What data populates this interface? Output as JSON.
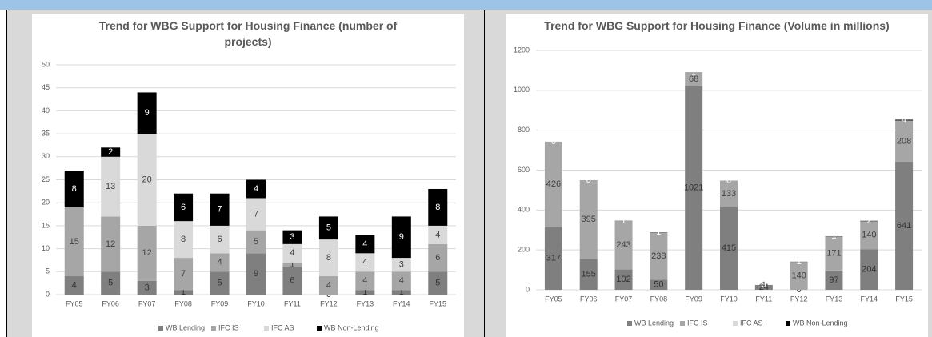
{
  "chart_data": [
    {
      "type": "stacked_bar",
      "title": "Trend for WBG Support for Housing Finance (number of projects)",
      "categories": [
        "FY05",
        "FY06",
        "FY07",
        "FY08",
        "FY09",
        "FY10",
        "FY11",
        "FY12",
        "FY13",
        "FY14",
        "FY15"
      ],
      "series": [
        {
          "name": "WB Lending",
          "color": "#7f7f7f",
          "values": [
            4,
            5,
            3,
            1,
            5,
            9,
            6,
            0,
            1,
            1,
            5
          ]
        },
        {
          "name": "IFC IS",
          "color": "#a6a6a6",
          "values": [
            15,
            12,
            12,
            7,
            4,
            5,
            1,
            4,
            4,
            4,
            6
          ]
        },
        {
          "name": "IFC AS",
          "color": "#d9d9d9",
          "values": [
            null,
            13,
            20,
            8,
            6,
            7,
            4,
            8,
            4,
            3,
            4
          ]
        },
        {
          "name": "WB Non-Lending",
          "color": "#000000",
          "values": [
            8,
            2,
            9,
            6,
            7,
            4,
            3,
            5,
            4,
            9,
            8
          ]
        }
      ],
      "ylim": [
        0,
        50
      ],
      "yticks": [
        0,
        5,
        10,
        15,
        20,
        25,
        30,
        35,
        40,
        45,
        50
      ],
      "grid": true,
      "legend": "bottom"
    },
    {
      "type": "stacked_bar",
      "title": "Trend for WBG Support for Housing Finance (Volume in millions)",
      "categories": [
        "FY05",
        "FY06",
        "FY07",
        "FY08",
        "FY09",
        "FY10",
        "FY11",
        "FY12",
        "FY13",
        "FY14",
        "FY15"
      ],
      "series": [
        {
          "name": "WB Lending",
          "color": "#7f7f7f",
          "values": [
            317,
            155,
            102,
            50,
            1021,
            415,
            24,
            0,
            97,
            204,
            641
          ]
        },
        {
          "name": "IFC IS",
          "color": "#a6a6a6",
          "values": [
            426,
            395,
            243,
            238,
            68,
            133,
            null,
            140,
            171,
            140,
            208
          ]
        },
        {
          "name": "IFC AS",
          "color": "#d9d9d9",
          "values": [
            null,
            null,
            null,
            null,
            null,
            null,
            1,
            null,
            null,
            null,
            null
          ]
        },
        {
          "name": "WB Non-Lending",
          "color": "#000000",
          "values": [
            0,
            0,
            1,
            1,
            1,
            0,
            0,
            1,
            1,
            2,
            4
          ]
        }
      ],
      "ylim": [
        0,
        1200
      ],
      "yticks": [
        0,
        200,
        400,
        600,
        800,
        1000,
        1200
      ],
      "grid": true,
      "legend": "bottom"
    }
  ]
}
